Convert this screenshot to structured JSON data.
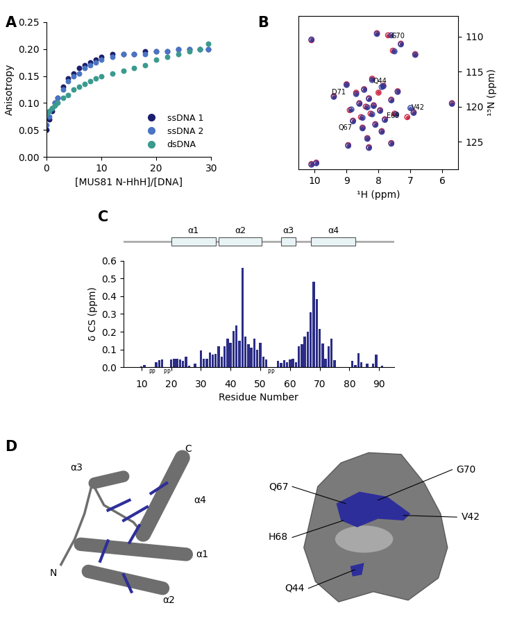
{
  "chart_data": [
    {
      "panel": "A",
      "type": "scatter",
      "x_label": "[MUS81 N-HhH]/[DNA]",
      "y_label": "Anisotropy",
      "xlim": [
        0,
        30
      ],
      "xticks": [
        0,
        10,
        20,
        30
      ],
      "ylim": [
        0,
        0.25
      ],
      "yticks": [
        {
          "value": 0,
          "label": "0.00"
        },
        {
          "value": 0.05,
          "label": "0.05"
        },
        {
          "value": 0.1,
          "label": "0.10"
        },
        {
          "value": 0.15,
          "label": "0.15"
        },
        {
          "value": 0.2,
          "label": "0.20"
        },
        {
          "value": 0.25,
          "label": "0.25"
        }
      ],
      "legend": "lower right",
      "marker": "o",
      "series": [
        {
          "name": "ssDNA 1",
          "color": "#1c1f6b",
          "x": [
            0,
            0.5,
            1,
            1.5,
            2,
            3,
            4,
            5,
            6,
            7,
            8,
            9,
            10,
            12,
            14,
            16,
            18,
            20,
            22,
            24,
            26,
            28,
            29.5
          ],
          "values": [
            0.05,
            0.07,
            0.085,
            0.1,
            0.11,
            0.13,
            0.145,
            0.155,
            0.165,
            0.17,
            0.175,
            0.18,
            0.185,
            0.19,
            0.19,
            0.19,
            0.195,
            0.195,
            0.195,
            0.2,
            0.2,
            0.2,
            0.2
          ]
        },
        {
          "name": "ssDNA 2",
          "color": "#4a74c4",
          "x": [
            0,
            0.5,
            1,
            1.5,
            2,
            3,
            4,
            5,
            6,
            7,
            8,
            9,
            10,
            12,
            14,
            16,
            18,
            20,
            22,
            24,
            26,
            28,
            29.5
          ],
          "values": [
            0.06,
            0.075,
            0.09,
            0.1,
            0.11,
            0.125,
            0.14,
            0.15,
            0.155,
            0.165,
            0.17,
            0.175,
            0.18,
            0.185,
            0.19,
            0.19,
            0.19,
            0.195,
            0.195,
            0.2,
            0.2,
            0.2,
            0.2
          ]
        },
        {
          "name": "dsDNA",
          "color": "#3a9a8e",
          "x": [
            0,
            0.5,
            1,
            1.5,
            2,
            3,
            4,
            5,
            6,
            7,
            8,
            9,
            10,
            12,
            14,
            16,
            18,
            20,
            22,
            24,
            26,
            28,
            29.5
          ],
          "values": [
            0.08,
            0.085,
            0.09,
            0.095,
            0.1,
            0.11,
            0.115,
            0.125,
            0.13,
            0.135,
            0.14,
            0.145,
            0.15,
            0.155,
            0.16,
            0.165,
            0.17,
            0.18,
            0.185,
            0.19,
            0.195,
            0.2,
            0.21
          ]
        }
      ]
    },
    {
      "panel": "B",
      "type": "scatter",
      "x_label": "¹H (ppm)",
      "y_label": "¹⁵N (ppm)",
      "xlim": [
        10.5,
        5.5
      ],
      "xticks": [
        10,
        9,
        8,
        7,
        6
      ],
      "ylim": [
        129,
        107
      ],
      "yticks": [
        110,
        115,
        120,
        125
      ],
      "marker": "o",
      "series": [
        {
          "color": "#c8102e",
          "x": [
            10.1,
            9.95,
            10.1,
            9.4,
            9.0,
            8.9,
            8.8,
            8.7,
            8.6,
            8.55,
            8.5,
            8.45,
            8.4,
            8.35,
            8.3,
            8.25,
            8.2,
            8.15,
            8.1,
            8.05,
            8.0,
            7.95,
            7.9,
            7.85,
            7.8,
            7.7,
            7.6,
            7.55,
            7.5,
            7.4,
            7.3,
            7.1,
            6.9,
            6.85,
            5.7,
            8.95,
            8.3,
            7.6
          ],
          "values": [
            128.2,
            128.0,
            110.5,
            118.5,
            116.8,
            120.5,
            122.0,
            118.0,
            119.5,
            121.5,
            123.0,
            117.5,
            120.0,
            124.5,
            118.8,
            121.0,
            116.0,
            119.8,
            122.5,
            109.5,
            118.0,
            120.5,
            123.5,
            117.0,
            121.8,
            109.8,
            119.0,
            112.0,
            121.0,
            117.8,
            111.0,
            121.5,
            120.8,
            112.5,
            119.5,
            125.5,
            125.8,
            125.2
          ]
        },
        {
          "color": "#2a3a9c",
          "x": [
            10.1,
            9.95,
            10.1,
            9.4,
            9.0,
            8.85,
            8.8,
            8.7,
            8.6,
            8.5,
            8.5,
            8.45,
            8.35,
            8.35,
            8.3,
            8.2,
            8.2,
            8.15,
            8.1,
            8.05,
            7.9,
            7.95,
            7.9,
            7.85,
            7.8,
            7.6,
            7.6,
            7.5,
            7.45,
            7.4,
            7.3,
            7.0,
            6.9,
            6.85,
            5.7,
            8.95,
            8.3,
            7.6
          ],
          "values": [
            128.3,
            128.1,
            110.4,
            118.6,
            116.9,
            120.4,
            122.1,
            118.2,
            119.6,
            121.6,
            123.1,
            117.6,
            120.1,
            124.6,
            118.9,
            121.1,
            116.2,
            119.9,
            122.6,
            109.6,
            117.2,
            120.6,
            123.6,
            117.1,
            121.9,
            109.8,
            119.1,
            112.1,
            121.1,
            117.9,
            111.1,
            120.2,
            120.9,
            112.6,
            119.6,
            125.6,
            125.9,
            125.3
          ]
        }
      ],
      "annotations": [
        {
          "text": "G70",
          "x": 7.4,
          "y": 109.9
        },
        {
          "text": "Q44",
          "x": 7.95,
          "y": 116.4
        },
        {
          "text": "D71",
          "x": 9.25,
          "y": 118.0
        },
        {
          "text": "V42",
          "x": 6.75,
          "y": 120.1
        },
        {
          "text": "E69",
          "x": 7.55,
          "y": 121.3
        },
        {
          "text": "Q67",
          "x": 9.05,
          "y": 123.0
        }
      ]
    },
    {
      "panel": "C",
      "type": "bar",
      "x_label": "Residue Number",
      "y_label": "δ CS (ppm)",
      "color": "#2b2d86",
      "x": [
        10,
        11,
        12,
        13,
        14,
        15,
        16,
        17,
        18,
        19,
        20,
        21,
        22,
        23,
        24,
        25,
        26,
        27,
        28,
        29,
        30,
        31,
        32,
        33,
        34,
        35,
        36,
        37,
        38,
        39,
        40,
        41,
        42,
        43,
        44,
        45,
        46,
        47,
        48,
        49,
        50,
        51,
        52,
        53,
        54,
        55,
        56,
        57,
        58,
        59,
        60,
        61,
        62,
        63,
        64,
        65,
        66,
        67,
        68,
        69,
        70,
        71,
        72,
        73,
        74,
        75,
        76,
        77,
        78,
        79,
        80,
        81,
        82,
        83,
        84,
        85,
        86,
        87,
        88,
        89,
        90,
        91
      ],
      "values": [
        0.005,
        0.015,
        0.0,
        null,
        null,
        0.03,
        0.04,
        0.045,
        null,
        null,
        0.045,
        0.05,
        0.05,
        0.045,
        0.035,
        0.06,
        0.01,
        0.0,
        0.02,
        0.0,
        0.095,
        0.05,
        0.05,
        0.085,
        0.07,
        0.075,
        0.12,
        0.06,
        0.12,
        0.16,
        0.14,
        0.205,
        0.235,
        0.15,
        0.56,
        0.175,
        0.13,
        0.11,
        0.16,
        0.1,
        0.14,
        0.06,
        0.045,
        null,
        null,
        0.0,
        0.035,
        0.025,
        0.04,
        0.03,
        0.045,
        0.05,
        0.03,
        0.12,
        0.13,
        0.175,
        0.2,
        0.31,
        0.48,
        0.385,
        0.215,
        0.135,
        0.05,
        0.12,
        0.16,
        0.04,
        0.0,
        0.0,
        0.0,
        0.0,
        0.0,
        0.035,
        0.015,
        0.08,
        0.03,
        0.0,
        0.02,
        0.0,
        0.02,
        0.07,
        0.0,
        0.01
      ],
      "xlim": [
        4,
        95
      ],
      "xticks": [
        10,
        20,
        30,
        40,
        50,
        60,
        70,
        80,
        90
      ],
      "ylim": [
        0,
        0.6
      ],
      "yticks": [
        0.0,
        0.1,
        0.2,
        0.3,
        0.4,
        0.5,
        0.6
      ],
      "annotations": [
        {
          "x": 13,
          "text": "P"
        },
        {
          "x": 14,
          "text": "P"
        },
        {
          "x": 18,
          "text": "P"
        },
        {
          "x": 19,
          "text": "P"
        },
        {
          "x": 53,
          "text": "P"
        },
        {
          "x": 54,
          "text": "P"
        }
      ],
      "secondary_structure": [
        {
          "label": "α1",
          "start": 20,
          "end": 35
        },
        {
          "label": "α2",
          "start": 36,
          "end": 50.5
        },
        {
          "label": "α3",
          "start": 57,
          "end": 62
        },
        {
          "label": "α4",
          "start": 67,
          "end": 82
        }
      ]
    }
  ],
  "diagram": {
    "panel": "D",
    "cartoon_labels": [
      "α3",
      "α4",
      "C",
      "N",
      "α1",
      "α2"
    ],
    "surface_labels": [
      "Q67",
      "G70",
      "V42",
      "H68",
      "Q44"
    ]
  }
}
